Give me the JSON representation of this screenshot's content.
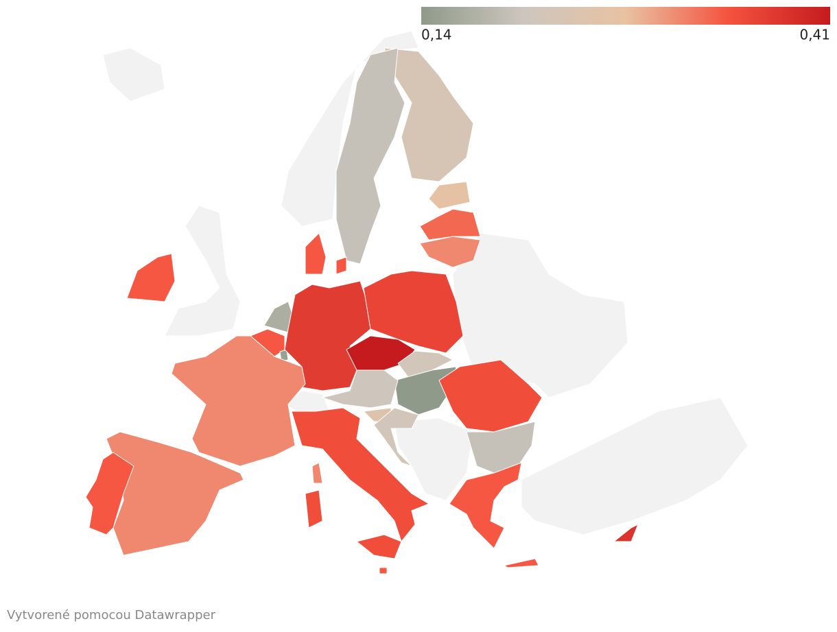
{
  "legend": {
    "ticks": [
      {
        "value": 0.14,
        "label": "0,14"
      },
      {
        "value": 0.41,
        "label": "0,41"
      }
    ],
    "colors": [
      "#8f9a8a",
      "#cdc6be",
      "#e8c2a2",
      "#f5533f",
      "#c51b1e"
    ]
  },
  "map": {
    "values": [
      0.23,
      0.2,
      0.27,
      0.33,
      0.31,
      0.34,
      0.34,
      0.17,
      0.34,
      0.15,
      0.37,
      0.36,
      0.41,
      0.22,
      0.14,
      0.21,
      0.25,
      0.22,
      0.35,
      0.2,
      0.34,
      0.38,
      0.35,
      0.31,
      0.31,
      0.34,
      0.34
    ]
  },
  "footer": "Vytvorené pomocou Datawrapper"
}
